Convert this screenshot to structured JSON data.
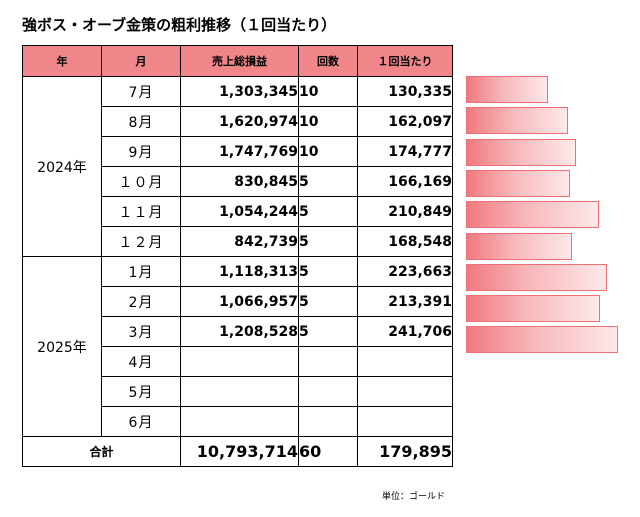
{
  "title": "強ボス・オーブ金策の粗利推移（１回当たり）",
  "headers": {
    "year": "年",
    "month": "月",
    "sales": "売上総損益",
    "count": "回数",
    "per_run": "１回当たり"
  },
  "groups": [
    {
      "year": "2024年",
      "rows": [
        {
          "month": "7月",
          "sales": "1,303,345",
          "count": "10",
          "per_run": "130,335"
        },
        {
          "month": "8月",
          "sales": "1,620,974",
          "count": "10",
          "per_run": "162,097"
        },
        {
          "month": "9月",
          "sales": "1,747,769",
          "count": "10",
          "per_run": "174,777"
        },
        {
          "month": "１０月",
          "sales": "830,845",
          "count": "5",
          "per_run": "166,169"
        },
        {
          "month": "１１月",
          "sales": "1,054,244",
          "count": "5",
          "per_run": "210,849"
        },
        {
          "month": "１２月",
          "sales": "842,739",
          "count": "5",
          "per_run": "168,548"
        }
      ]
    },
    {
      "year": "2025年",
      "rows": [
        {
          "month": "1月",
          "sales": "1,118,313",
          "count": "5",
          "per_run": "223,663"
        },
        {
          "month": "2月",
          "sales": "1,066,957",
          "count": "5",
          "per_run": "213,391"
        },
        {
          "month": "3月",
          "sales": "1,208,528",
          "count": "5",
          "per_run": "241,706"
        },
        {
          "month": "4月",
          "sales": "",
          "count": "",
          "per_run": ""
        },
        {
          "month": "5月",
          "sales": "",
          "count": "",
          "per_run": ""
        },
        {
          "month": "6月",
          "sales": "",
          "count": "",
          "per_run": ""
        }
      ]
    }
  ],
  "total": {
    "label": "合計",
    "sales": "10,793,714",
    "count": "60",
    "per_run": "179,895"
  },
  "unit_note": "単位：ゴールド",
  "chart_data": {
    "type": "bar",
    "orientation": "horizontal",
    "categories": [
      "7月",
      "8月",
      "9月",
      "１０月",
      "１１月",
      "１２月",
      "1月",
      "2月",
      "3月"
    ],
    "values": [
      130335,
      162097,
      174777,
      166169,
      210849,
      168548,
      223663,
      213391,
      241706
    ],
    "xlim": [
      0,
      241706
    ],
    "colors": {
      "bar": "#f0868a",
      "bar_border": "#ef6f75"
    }
  }
}
